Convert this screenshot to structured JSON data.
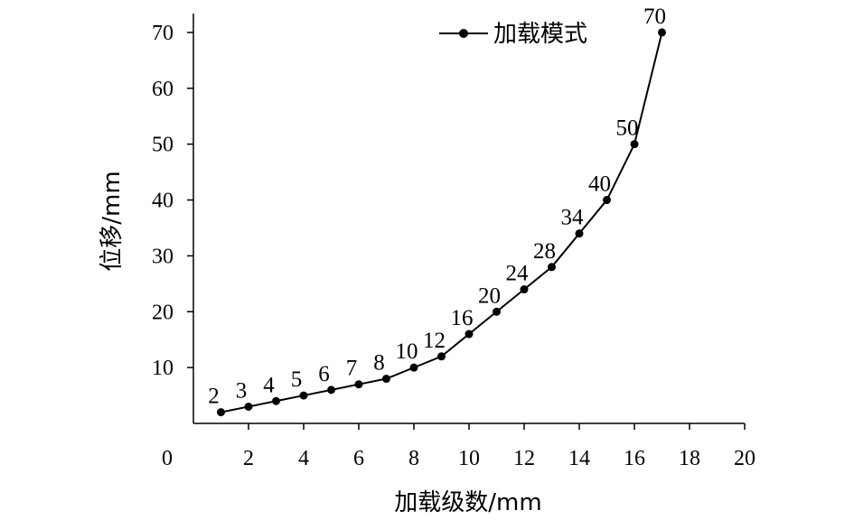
{
  "chart_data": {
    "type": "line",
    "title": "",
    "xlabel": "加载级数/mm",
    "ylabel": "位移/mm",
    "xlim": [
      0,
      20
    ],
    "ylim": [
      0,
      75
    ],
    "x_ticks": [
      "0",
      "2",
      "4",
      "6",
      "8",
      "10",
      "12",
      "14",
      "16",
      "18",
      "20"
    ],
    "y_ticks": [
      "10",
      "20",
      "30",
      "40",
      "50",
      "60",
      "70"
    ],
    "grid": false,
    "legend": {
      "position": "top-center",
      "entries": [
        "加载模式"
      ]
    },
    "series": [
      {
        "name": "加载模式",
        "color": "#000000",
        "marker": "circle",
        "x": [
          1,
          2,
          3,
          4,
          5,
          6,
          7,
          8,
          9,
          10,
          11,
          12,
          13,
          14,
          15,
          16,
          17
        ],
        "y": [
          2,
          3,
          4,
          5,
          6,
          7,
          8,
          10,
          12,
          16,
          20,
          24,
          28,
          34,
          40,
          50,
          70
        ],
        "labels": [
          "2",
          "3",
          "4",
          "5",
          "6",
          "7",
          "8",
          "10",
          "12",
          "16",
          "20",
          "24",
          "28",
          "34",
          "40",
          "50",
          "70"
        ]
      }
    ]
  }
}
